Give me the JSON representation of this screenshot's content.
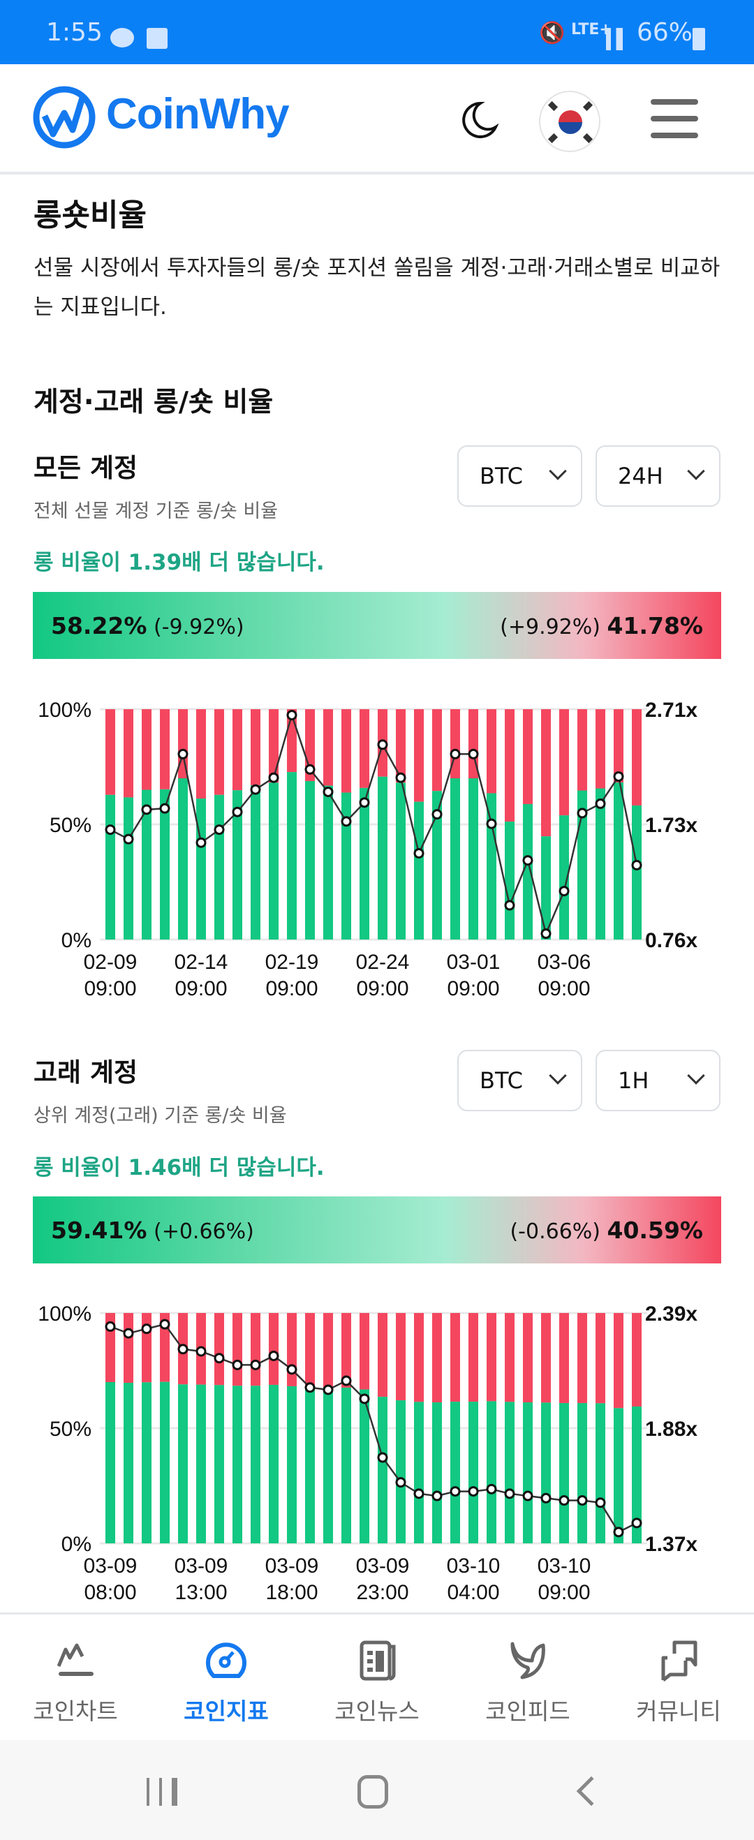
{
  "status_bar": {
    "time": "1:55",
    "network": "LTE+",
    "battery": "66%",
    "icons": [
      "kakaotalk-icon",
      "gallery-icon",
      "mute-icon",
      "signal-icon",
      "battery-icon"
    ]
  },
  "header": {
    "logo": "CoinWhy",
    "icons": [
      "moon-icon",
      "korea-flag-icon",
      "menu-icon"
    ]
  },
  "page": {
    "title": "롱숏비율",
    "description": "선물 시장에서 투자자들의 롱/숏 포지션 쏠림을 계정·고래·거래소별로 비교하는 지표입니다.",
    "section_title": "계정·고래 롱/숏 비율"
  },
  "blocks": [
    {
      "title": "모든 계정",
      "subtitle": "전체 선물 계정 기준 롱/숏 비율",
      "coin": "BTC",
      "interval": "24H",
      "message": "롱 비율이 1.39배 더 많습니다.",
      "long_pct": "58.22%",
      "long_change": "(-9.92%)",
      "short_pct": "41.78%",
      "short_change": "(+9.92%)"
    },
    {
      "title": "고래 계정",
      "subtitle": "상위 계정(고래) 기준 롱/숏 비율",
      "coin": "BTC",
      "interval": "1H",
      "message": "롱 비율이 1.46배 더 많습니다.",
      "long_pct": "59.41%",
      "long_change": "(+0.66%)",
      "short_pct": "40.59%",
      "short_change": "(-0.66%)"
    }
  ],
  "chart_data": [
    {
      "type": "bar",
      "stacked": true,
      "left_axis": {
        "ticks": [
          "100%",
          "50%",
          "0%"
        ],
        "range": [
          0,
          100
        ]
      },
      "right_axis": {
        "ticks": [
          "2.71x",
          "1.73x",
          "0.76x"
        ],
        "range": [
          0.76,
          2.71
        ]
      },
      "x_labels": [
        [
          "02-09",
          "09:00"
        ],
        [
          "02-14",
          "09:00"
        ],
        [
          "02-19",
          "09:00"
        ],
        [
          "02-24",
          "09:00"
        ],
        [
          "03-01",
          "09:00"
        ],
        [
          "03-06",
          "09:00"
        ]
      ],
      "long_pct": [
        62.8,
        61.7,
        65.0,
        65.2,
        70.0,
        61.2,
        62.8,
        64.8,
        67.0,
        68.1,
        72.7,
        68.8,
        66.8,
        63.8,
        65.8,
        70.7,
        68.1,
        59.8,
        64.5,
        70.0,
        70.0,
        63.5,
        51.2,
        58.8,
        44.8,
        53.9,
        64.7,
        65.6,
        68.2,
        58.2
      ],
      "ratio": [
        1.69,
        1.61,
        1.86,
        1.87,
        2.33,
        1.58,
        1.69,
        1.84,
        2.03,
        2.13,
        2.66,
        2.2,
        2.01,
        1.76,
        1.92,
        2.41,
        2.13,
        1.49,
        1.82,
        2.33,
        2.33,
        1.74,
        1.05,
        1.43,
        0.81,
        1.17,
        1.83,
        1.91,
        2.14,
        1.39
      ],
      "colors": {
        "long": "#12c882",
        "short": "#f4475f",
        "line": "#333333"
      },
      "grid": true
    },
    {
      "type": "bar",
      "stacked": true,
      "left_axis": {
        "ticks": [
          "100%",
          "50%",
          "0%"
        ],
        "range": [
          0,
          100
        ]
      },
      "right_axis": {
        "ticks": [
          "2.39x",
          "1.88x",
          "1.37x"
        ],
        "range": [
          1.37,
          2.39
        ]
      },
      "x_labels": [
        [
          "03-09",
          "08:00"
        ],
        [
          "03-09",
          "13:00"
        ],
        [
          "03-09",
          "18:00"
        ],
        [
          "03-09",
          "23:00"
        ],
        [
          "03-10",
          "04:00"
        ],
        [
          "03-10",
          "09:00"
        ]
      ],
      "long_pct": [
        70.0,
        69.7,
        69.9,
        70.1,
        69.0,
        68.9,
        68.7,
        68.4,
        68.4,
        68.8,
        68.2,
        67.3,
        67.2,
        67.6,
        66.8,
        63.6,
        62.1,
        61.4,
        61.2,
        61.5,
        61.5,
        61.7,
        61.4,
        61.2,
        61.1,
        60.9,
        60.9,
        60.8,
        58.7,
        59.4
      ],
      "ratio": [
        2.33,
        2.3,
        2.32,
        2.34,
        2.23,
        2.22,
        2.19,
        2.16,
        2.16,
        2.2,
        2.14,
        2.06,
        2.05,
        2.09,
        2.01,
        1.75,
        1.64,
        1.59,
        1.58,
        1.6,
        1.6,
        1.61,
        1.59,
        1.58,
        1.57,
        1.56,
        1.56,
        1.55,
        1.42,
        1.46
      ],
      "colors": {
        "long": "#12c882",
        "short": "#f4475f",
        "line": "#333333"
      },
      "grid": true
    }
  ],
  "bottom_nav": [
    {
      "label": "코인차트",
      "icon": "chart-icon",
      "active": false
    },
    {
      "label": "코인지표",
      "icon": "gauge-icon",
      "active": true
    },
    {
      "label": "코인뉴스",
      "icon": "newspaper-icon",
      "active": false
    },
    {
      "label": "코인피드",
      "icon": "twitter-icon",
      "active": false
    },
    {
      "label": "커뮤니티",
      "icon": "chat-icon",
      "active": false
    }
  ]
}
